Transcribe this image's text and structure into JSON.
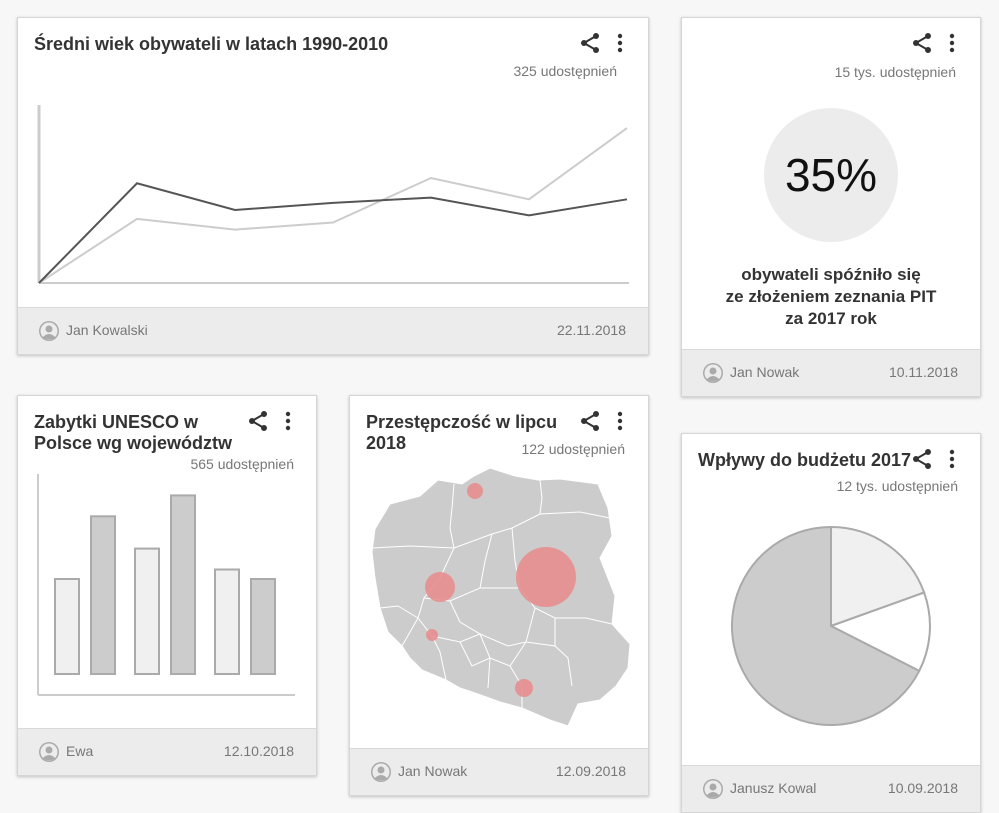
{
  "cards": {
    "avg_age": {
      "title": "Średni wiek obywateli w latach 1990-2010",
      "shares": "325 udostępnień",
      "author": "Jan Kowalski",
      "date": "22.11.2018"
    },
    "pit": {
      "shares": "15 tys. udostępnień",
      "percent": "35%",
      "desc_line1": "obywateli spóźniło się",
      "desc_line2": "ze złożeniem zeznania PIT",
      "desc_line3": "za 2017 rok",
      "author": "Jan Nowak",
      "date": "10.11.2018"
    },
    "unesco": {
      "title_line1": "Zabytki UNESCO w",
      "title_line2": "Polsce wg województw",
      "shares": "565 udostępnień",
      "author": "Ewa",
      "date": "12.10.2018"
    },
    "crime": {
      "title_line1": "Przestępczość w lipcu",
      "title_line2": "2018",
      "shares": "122 udostępnień",
      "author": "Jan Nowak",
      "date": "12.09.2018"
    },
    "budget": {
      "title": "Wpływy do budżetu 2017",
      "shares": "12 tys. udostępnień",
      "author": "Janusz Kowal",
      "date": "10.09.2018"
    }
  },
  "icons": [
    "share-icon",
    "more-icon",
    "user-icon"
  ],
  "chart_data": [
    {
      "type": "line",
      "x": [
        0,
        1,
        2,
        3,
        4,
        5,
        6
      ],
      "series": [
        {
          "values": [
            0,
            56,
            41,
            45,
            48,
            38,
            47
          ],
          "color": "#555555"
        },
        {
          "values": [
            0,
            36,
            30,
            34,
            59,
            47,
            87
          ],
          "color": "#cccccc"
        }
      ],
      "ylim": [
        0,
        100
      ],
      "grid": false
    },
    {
      "type": "bar",
      "categories": [
        "",
        "",
        "",
        "",
        "",
        ""
      ],
      "values": [
        50,
        83,
        66,
        94,
        55,
        50
      ],
      "colors": [
        "#f0f0f0",
        "#cccccc",
        "#f0f0f0",
        "#cccccc",
        "#f0f0f0",
        "#cccccc"
      ],
      "ylim": [
        0,
        100
      ]
    },
    {
      "type": "pie",
      "values": [
        19.5,
        13,
        67.5
      ],
      "colors": [
        "#f0f0f0",
        "#ffffff",
        "#cccccc"
      ]
    }
  ]
}
